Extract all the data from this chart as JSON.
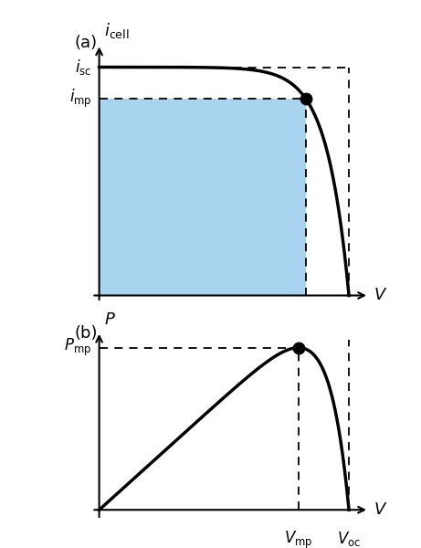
{
  "fig_width": 4.61,
  "fig_height": 6.0,
  "dpi": 100,
  "panel_a_label": "(a)",
  "panel_b_label": "(b)",
  "icell_label": "$i_{\\mathrm{cell}}$",
  "isc_label": "$i_{\\mathrm{sc}}$",
  "imp_label": "$i_{\\mathrm{mp}}$",
  "V_label_a": "$V$",
  "P_label": "$P$",
  "Pmp_label": "$P_{\\mathrm{mp}}$",
  "V_label_b": "$V$",
  "Vmp_label": "$V_{\\mathrm{mp}}$",
  "Voc_label": "$V_{\\mathrm{oc}}$",
  "curve_color": "black",
  "fill_color": "#a8d4f0",
  "dashed_color": "black",
  "dot_color": "black",
  "line_width": 2.5,
  "font_size": 13,
  "vmp": 0.76,
  "voc": 0.92,
  "isc": 0.95,
  "imp": 0.82,
  "alpha_iv": 0.065,
  "alpha_pv": 0.065
}
